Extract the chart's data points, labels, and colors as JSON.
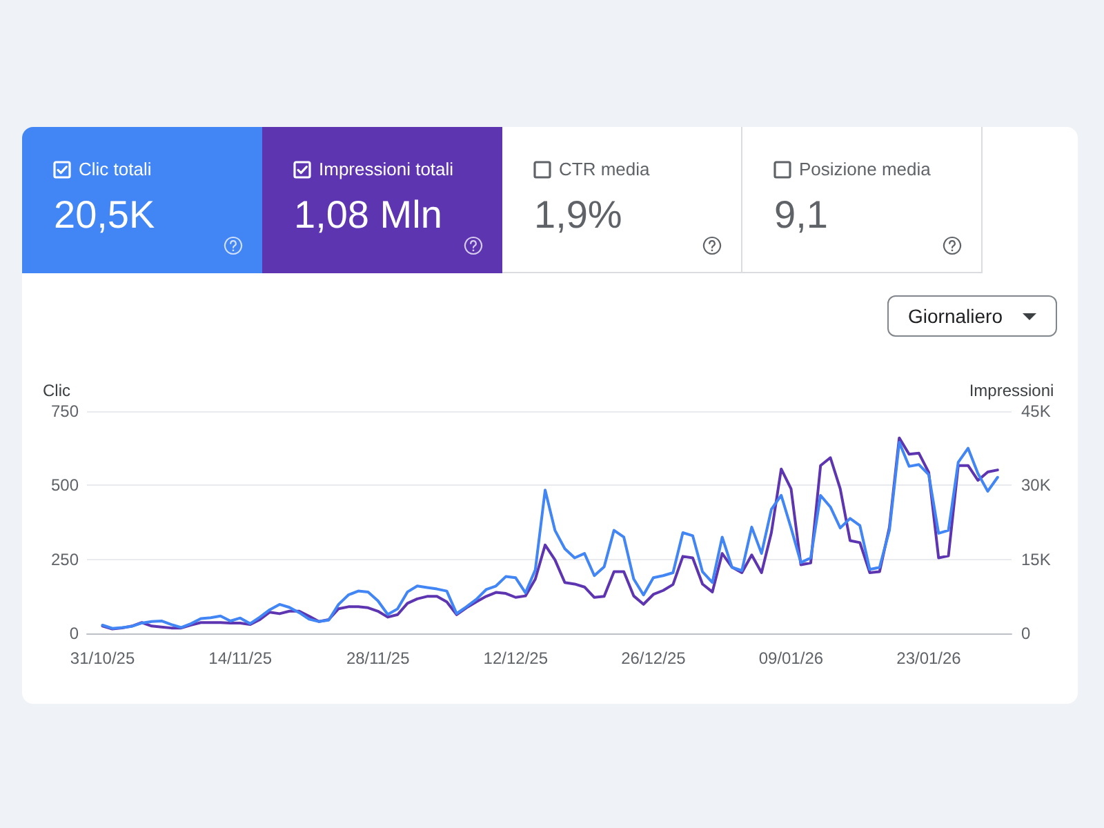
{
  "chart_data": {
    "type": "line",
    "ylabel": "Clic",
    "y2label": "Impressioni",
    "x": [
      "2025-10-31",
      "2025-11-01",
      "2025-11-02",
      "2025-11-03",
      "2025-11-04",
      "2025-11-05",
      "2025-11-06",
      "2025-11-07",
      "2025-11-08",
      "2025-11-09",
      "2025-11-10",
      "2025-11-11",
      "2025-11-12",
      "2025-11-13",
      "2025-11-14",
      "2025-11-15",
      "2025-11-16",
      "2025-11-17",
      "2025-11-18",
      "2025-11-19",
      "2025-11-20",
      "2025-11-21",
      "2025-11-22",
      "2025-11-23",
      "2025-11-24",
      "2025-11-25",
      "2025-11-26",
      "2025-11-27",
      "2025-11-28",
      "2025-11-29",
      "2025-11-30",
      "2025-12-01",
      "2025-12-02",
      "2025-12-03",
      "2025-12-04",
      "2025-12-05",
      "2025-12-06",
      "2025-12-07",
      "2025-12-08",
      "2025-12-09",
      "2025-12-10",
      "2025-12-11",
      "2025-12-12",
      "2025-12-13",
      "2025-12-14",
      "2025-12-15",
      "2025-12-16",
      "2025-12-17",
      "2025-12-18",
      "2025-12-19",
      "2025-12-20",
      "2025-12-21",
      "2025-12-22",
      "2025-12-23",
      "2025-12-24",
      "2025-12-25",
      "2025-12-26",
      "2025-12-27",
      "2025-12-28",
      "2025-12-29",
      "2025-12-30",
      "2025-12-31",
      "2026-01-01",
      "2026-01-02",
      "2026-01-03",
      "2026-01-04",
      "2026-01-05",
      "2026-01-06",
      "2026-01-07",
      "2026-01-08",
      "2026-01-09",
      "2026-01-10",
      "2026-01-11",
      "2026-01-12",
      "2026-01-13",
      "2026-01-14",
      "2026-01-15",
      "2026-01-16",
      "2026-01-17",
      "2026-01-18",
      "2026-01-19",
      "2026-01-20",
      "2026-01-21",
      "2026-01-22",
      "2026-01-23",
      "2026-01-24",
      "2026-01-25",
      "2026-01-26",
      "2026-01-27",
      "2026-01-28",
      "2026-01-29",
      "2026-01-30"
    ],
    "series": [
      {
        "name": "Clic totali",
        "color": "#4285f4",
        "values": [
          28,
          17,
          20,
          24,
          35,
          40,
          42,
          30,
          20,
          33,
          50,
          53,
          59,
          42,
          52,
          33,
          55,
          80,
          98,
          88,
          70,
          48,
          40,
          45,
          98,
          130,
          143,
          140,
          110,
          64,
          83,
          140,
          160,
          155,
          150,
          143,
          67,
          90,
          115,
          148,
          160,
          192,
          188,
          137,
          215,
          484,
          348,
          286,
          255,
          270,
          195,
          225,
          348,
          325,
          184,
          130,
          188,
          195,
          205,
          340,
          330,
          208,
          172,
          325,
          223,
          212,
          359,
          270,
          419,
          466,
          356,
          239,
          255,
          466,
          427,
          356,
          388,
          364,
          216,
          223,
          348,
          645,
          564,
          570,
          536,
          338,
          348,
          578,
          625,
          540,
          480,
          527
        ]
      },
      {
        "name": "Impressioni totali",
        "color": "#5e35b1",
        "axis": "y2",
        "values": [
          1500,
          900,
          1100,
          1500,
          2200,
          1500,
          1300,
          1100,
          1100,
          1700,
          2200,
          2200,
          2200,
          2100,
          2100,
          1800,
          2800,
          4300,
          4000,
          4500,
          4500,
          3500,
          2400,
          2800,
          5000,
          5400,
          5400,
          5200,
          4500,
          3300,
          3800,
          6100,
          7000,
          7500,
          7500,
          6400,
          3800,
          5200,
          6400,
          7500,
          8300,
          8100,
          7300,
          7600,
          11000,
          17900,
          14900,
          10300,
          10000,
          9400,
          7300,
          7500,
          12500,
          12500,
          7600,
          5900,
          7900,
          8700,
          9900,
          15600,
          15300,
          10000,
          8400,
          16200,
          13400,
          12300,
          15900,
          12300,
          20400,
          33300,
          29300,
          13900,
          14300,
          34000,
          35600,
          29300,
          18800,
          18400,
          12300,
          12500,
          21500,
          39600,
          36300,
          36500,
          32600,
          15300,
          15700,
          34000,
          34000,
          31000,
          32700,
          33100
        ]
      }
    ],
    "xlim": [
      "2025-10-29T10:00",
      "2026-01-31T10:00"
    ],
    "xticks": [
      {
        "value": "2025-10-31",
        "label": "31/10/25"
      },
      {
        "value": "2025-11-14",
        "label": "14/11/25"
      },
      {
        "value": "2025-11-28",
        "label": "28/11/25"
      },
      {
        "value": "2025-12-12",
        "label": "12/12/25"
      },
      {
        "value": "2025-12-26",
        "label": "26/12/25"
      },
      {
        "value": "2026-01-09",
        "label": "09/01/26"
      },
      {
        "value": "2026-01-23",
        "label": "23/01/26"
      }
    ],
    "ylim": [
      0,
      750
    ],
    "yticks": [
      0,
      250,
      500,
      750
    ],
    "y2lim": [
      0,
      45000
    ],
    "y2ticks": [
      0,
      {
        "value": 15000,
        "label": "15K"
      },
      {
        "value": 30000,
        "label": "30K"
      },
      {
        "value": 45000,
        "label": "45K"
      }
    ],
    "annotations": [
      "20,5K",
      "1,08 Mln",
      "CTR media",
      "1,9%",
      "Posizione media",
      "9,1",
      "Giornaliero"
    ],
    "grid": "y",
    "legend": "top",
    "marker": "none",
    "line_style": "solid"
  }
}
